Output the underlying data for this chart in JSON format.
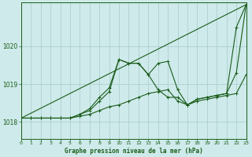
{
  "background_color": "#ceeaea",
  "grid_color": "#aed0d0",
  "line_color": "#1a5c1a",
  "title": "Graphe pression niveau de la mer (hPa)",
  "xlim": [
    0,
    23
  ],
  "ylim": [
    1017.55,
    1021.15
  ],
  "yticks": [
    1018,
    1019,
    1020
  ],
  "xticks": [
    0,
    1,
    2,
    3,
    4,
    5,
    6,
    7,
    8,
    9,
    10,
    11,
    12,
    13,
    14,
    15,
    16,
    17,
    18,
    19,
    20,
    21,
    22,
    23
  ],
  "series_jagged": {
    "x": [
      0,
      1,
      2,
      3,
      4,
      5,
      6,
      7,
      8,
      9,
      10,
      11,
      12,
      13,
      14,
      15,
      16,
      17,
      18,
      19,
      20,
      21,
      22,
      23
    ],
    "y": [
      1018.1,
      1018.1,
      1018.1,
      1018.1,
      1018.1,
      1018.1,
      1018.2,
      1018.3,
      1018.55,
      1018.8,
      1019.65,
      1019.55,
      1019.55,
      1019.25,
      1019.55,
      1019.6,
      1018.85,
      1018.45,
      1018.6,
      1018.65,
      1018.7,
      1018.75,
      1020.5,
      1021.1
    ]
  },
  "series_smooth": {
    "x": [
      0,
      1,
      2,
      3,
      4,
      5,
      6,
      7,
      8,
      9,
      10,
      11,
      12,
      13,
      14,
      15,
      16,
      17,
      18,
      19,
      20,
      21,
      22,
      23
    ],
    "y": [
      1018.1,
      1018.1,
      1018.1,
      1018.1,
      1018.1,
      1018.1,
      1018.2,
      1018.35,
      1018.65,
      1018.9,
      1019.65,
      1019.55,
      1019.55,
      1019.25,
      1018.85,
      1018.65,
      1018.65,
      1018.45,
      1018.6,
      1018.65,
      1018.7,
      1018.75,
      1019.3,
      1021.1
    ]
  },
  "series_diagonal": {
    "x": [
      0,
      23
    ],
    "y": [
      1018.1,
      1021.1
    ]
  },
  "series_low": {
    "x": [
      0,
      1,
      2,
      3,
      4,
      5,
      6,
      7,
      8,
      9,
      10,
      11,
      12,
      13,
      14,
      15,
      16,
      17,
      18,
      19,
      20,
      21,
      22,
      23
    ],
    "y": [
      1018.1,
      1018.1,
      1018.1,
      1018.1,
      1018.1,
      1018.1,
      1018.15,
      1018.2,
      1018.3,
      1018.4,
      1018.45,
      1018.55,
      1018.65,
      1018.75,
      1018.8,
      1018.85,
      1018.55,
      1018.45,
      1018.55,
      1018.6,
      1018.65,
      1018.7,
      1018.75,
      1019.25
    ]
  }
}
